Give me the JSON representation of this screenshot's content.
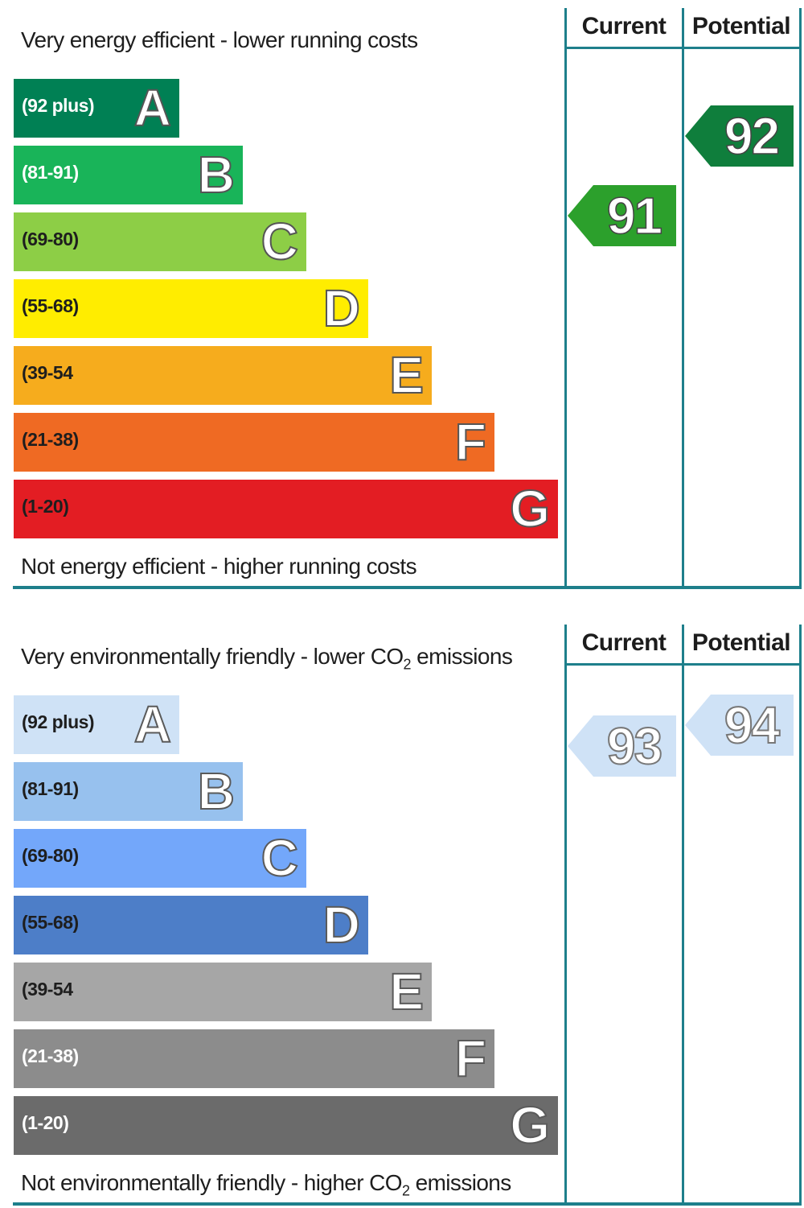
{
  "chart_data": [
    {
      "type": "bar",
      "top_text": "Very energy efficient - lower running costs",
      "bottom_text": "Not energy efficient - higher running costs",
      "columns": [
        "Current",
        "Potential"
      ],
      "bands": [
        {
          "letter": "A",
          "range": "(92 plus)",
          "color": "#008054",
          "text_color": "#ffffff"
        },
        {
          "letter": "B",
          "range": "(81-91)",
          "color": "#19b459",
          "text_color": "#ffffff"
        },
        {
          "letter": "C",
          "range": "(69-80)",
          "color": "#8dce46",
          "text_color": "#1e1e1e"
        },
        {
          "letter": "D",
          "range": "(55-68)",
          "color": "#ffed00",
          "text_color": "#1e1e1e"
        },
        {
          "letter": "E",
          "range": "(39-54",
          "color": "#f6ac1d",
          "text_color": "#1e1e1e"
        },
        {
          "letter": "F",
          "range": "(21-38)",
          "color": "#ef6a23",
          "text_color": "#1e1e1e"
        },
        {
          "letter": "G",
          "range": "(1-20)",
          "color": "#e31d23",
          "text_color": "#1e1e1e"
        }
      ],
      "current": {
        "value": 91,
        "band": "B",
        "color": "#2ca02c"
      },
      "potential": {
        "value": 92,
        "band": "A",
        "color": "#0f7e3c"
      }
    },
    {
      "type": "bar",
      "top_text": "Very environmentally friendly - lower CO",
      "top_text_sub": "2",
      "top_text_after": " emissions",
      "bottom_text": "Not environmentally friendly - higher CO",
      "bottom_text_sub": "2",
      "bottom_text_after": " emissions",
      "columns": [
        "Current",
        "Potential"
      ],
      "bands": [
        {
          "letter": "A",
          "range": "(92 plus)",
          "color": "#cfe2f6",
          "text_color": "#1e1e1e"
        },
        {
          "letter": "B",
          "range": "(81-91)",
          "color": "#97c1ee",
          "text_color": "#1e1e1e"
        },
        {
          "letter": "C",
          "range": "(69-80)",
          "color": "#73a7fa",
          "text_color": "#1e1e1e"
        },
        {
          "letter": "D",
          "range": "(55-68)",
          "color": "#4d7ec8",
          "text_color": "#1e1e1e"
        },
        {
          "letter": "E",
          "range": "(39-54",
          "color": "#a6a6a6",
          "text_color": "#1e1e1e"
        },
        {
          "letter": "F",
          "range": "(21-38)",
          "color": "#8c8c8c",
          "text_color": "#ffffff"
        },
        {
          "letter": "G",
          "range": "(1-20)",
          "color": "#6b6b6b",
          "text_color": "#ffffff"
        }
      ],
      "current": {
        "value": 93,
        "band": "A",
        "color": "#cfe2f6"
      },
      "potential": {
        "value": 94,
        "band": "A",
        "color": "#cfe2f6"
      }
    }
  ]
}
